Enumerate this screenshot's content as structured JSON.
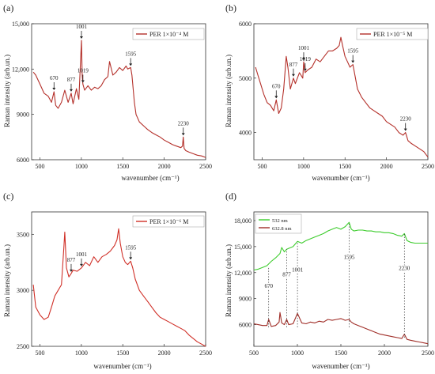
{
  "panels": [
    {
      "letter": "(a)",
      "ylabel": "Raman intensity (arb.un.)",
      "xlabel": "wavenumber (cm⁻¹)",
      "legend": [
        {
          "name": "PER 1×10⁻⁴ M",
          "color": "#b4302a"
        }
      ]
    },
    {
      "letter": "(b)",
      "ylabel": "Raman intensity (arb.un.)",
      "xlabel": "wavenumber (cm⁻¹)",
      "legend": [
        {
          "name": "PER 1×10⁻⁵ M",
          "color": "#b4302a"
        }
      ]
    },
    {
      "letter": "(c)",
      "ylabel": "Raman intensity (arb.un.)",
      "xlabel": "wavenumber (cm⁻¹)",
      "legend": [
        {
          "name": "PER 1×10⁻⁶ M",
          "color": "#d03028"
        }
      ]
    },
    {
      "letter": "(d)",
      "ylabel": "Raman intensity (arb.un.)",
      "xlabel": "wavenumber (cm⁻¹)",
      "legend": [
        {
          "name": "532 nm",
          "color": "#3ccc2c"
        },
        {
          "name": "632.8 nm",
          "color": "#a02e28"
        }
      ]
    }
  ],
  "chart_data": [
    {
      "type": "line",
      "xlim": [
        400,
        2500
      ],
      "ylim": [
        6000,
        15000
      ],
      "xticks": [
        500,
        1000,
        1500,
        2000,
        2500
      ],
      "yticks": [
        6000,
        9000,
        12000,
        15000
      ],
      "ytick_labels": [
        "6000",
        "9000",
        "12,000",
        "15,000"
      ],
      "grid": false,
      "legend_position": "top-right",
      "series": [
        {
          "name": "PER 1×10⁻⁴ M",
          "color": "#b4302a",
          "x": [
            420,
            450,
            500,
            550,
            600,
            640,
            670,
            690,
            720,
            760,
            800,
            840,
            877,
            900,
            940,
            970,
            1001,
            1010,
            1019,
            1040,
            1080,
            1120,
            1160,
            1200,
            1240,
            1280,
            1320,
            1340,
            1380,
            1420,
            1460,
            1500,
            1540,
            1560,
            1595,
            1610,
            1640,
            1660,
            1700,
            1760,
            1800,
            1850,
            1900,
            1950,
            2000,
            2050,
            2100,
            2150,
            2200,
            2220,
            2230,
            2240,
            2260,
            2300,
            2350,
            2400,
            2450,
            2500
          ],
          "y": [
            11800,
            11600,
            11000,
            10400,
            10200,
            9800,
            10500,
            9600,
            9400,
            9800,
            10600,
            9800,
            10400,
            9700,
            10700,
            10000,
            13900,
            11600,
            11000,
            10600,
            10900,
            10600,
            10800,
            10700,
            10900,
            11300,
            11500,
            12500,
            11600,
            11800,
            12100,
            11900,
            12200,
            12000,
            12100,
            11600,
            9800,
            9000,
            8500,
            8200,
            8000,
            7800,
            7650,
            7500,
            7300,
            7150,
            7000,
            6900,
            6800,
            6900,
            7500,
            6750,
            6600,
            6500,
            6400,
            6300,
            6250,
            6150
          ]
        }
      ],
      "annotations": [
        {
          "label": "670",
          "x": 670,
          "y": 10500
        },
        {
          "label": "877",
          "x": 877,
          "y": 10400
        },
        {
          "label": "1001",
          "x": 1001,
          "y": 13900
        },
        {
          "label": "1019",
          "x": 1019,
          "y": 11000
        },
        {
          "label": "1595",
          "x": 1595,
          "y": 12100
        },
        {
          "label": "2230",
          "x": 2230,
          "y": 7500
        }
      ]
    },
    {
      "type": "line",
      "xlim": [
        400,
        2500
      ],
      "ylim": [
        3500,
        6000
      ],
      "xticks": [
        500,
        1000,
        1500,
        2000,
        2500
      ],
      "yticks": [
        4000,
        5000,
        6000
      ],
      "ytick_labels": [
        "4000",
        "5000",
        "6000"
      ],
      "grid": false,
      "legend_position": "top-right",
      "series": [
        {
          "name": "PER 1×10⁻⁵ M",
          "color": "#b4302a",
          "x": [
            420,
            450,
            480,
            520,
            560,
            600,
            640,
            670,
            700,
            730,
            760,
            790,
            810,
            840,
            877,
            900,
            950,
            990,
            1001,
            1019,
            1050,
            1100,
            1150,
            1200,
            1250,
            1300,
            1350,
            1400,
            1430,
            1450,
            1470,
            1500,
            1530,
            1560,
            1595,
            1620,
            1650,
            1700,
            1750,
            1800,
            1850,
            1900,
            1950,
            2000,
            2050,
            2100,
            2150,
            2200,
            2230,
            2260,
            2300,
            2350,
            2400,
            2450,
            2500
          ],
          "y": [
            5200,
            5050,
            4900,
            4700,
            4550,
            4500,
            4400,
            4600,
            4350,
            4450,
            4800,
            5400,
            5200,
            4800,
            5000,
            4900,
            5100,
            5000,
            5300,
            5100,
            5150,
            5200,
            5350,
            5300,
            5400,
            5500,
            5500,
            5550,
            5600,
            5750,
            5600,
            5400,
            5300,
            5200,
            5250,
            5050,
            4800,
            4650,
            4550,
            4450,
            4400,
            4350,
            4300,
            4200,
            4150,
            4100,
            4000,
            3950,
            4000,
            3850,
            3800,
            3750,
            3700,
            3650,
            3550
          ]
        }
      ],
      "annotations": [
        {
          "label": "670",
          "x": 670,
          "y": 4600
        },
        {
          "label": "877",
          "x": 877,
          "y": 5000
        },
        {
          "label": "1001",
          "x": 1001,
          "y": 5300
        },
        {
          "label": "1019",
          "x": 1019,
          "y": 5100
        },
        {
          "label": "1595",
          "x": 1595,
          "y": 5250
        },
        {
          "label": "2230",
          "x": 2230,
          "y": 4000
        }
      ]
    },
    {
      "type": "line",
      "xlim": [
        400,
        2500
      ],
      "ylim": [
        2500,
        3700
      ],
      "xticks": [
        500,
        1000,
        1500,
        2000,
        2500
      ],
      "yticks": [
        2500,
        3000,
        3500
      ],
      "ytick_labels": [
        "2500",
        "3000",
        "3500"
      ],
      "grid": false,
      "legend_position": "top-right",
      "series": [
        {
          "name": "PER 1×10⁻⁶ M",
          "color": "#d03028",
          "x": [
            420,
            450,
            500,
            550,
            600,
            640,
            680,
            720,
            760,
            790,
            800,
            820,
            850,
            877,
            900,
            950,
            1001,
            1050,
            1100,
            1150,
            1200,
            1250,
            1300,
            1350,
            1400,
            1430,
            1450,
            1470,
            1500,
            1530,
            1560,
            1595,
            1620,
            1650,
            1700,
            1750,
            1800,
            1850,
            1900,
            1950,
            2000,
            2050,
            2100,
            2150,
            2200,
            2250,
            2300,
            2350,
            2400,
            2450,
            2500
          ],
          "y": [
            3050,
            2850,
            2780,
            2740,
            2760,
            2850,
            2950,
            3000,
            3050,
            3400,
            3520,
            3200,
            3120,
            3150,
            3180,
            3170,
            3200,
            3250,
            3220,
            3300,
            3250,
            3300,
            3320,
            3350,
            3400,
            3450,
            3550,
            3420,
            3300,
            3250,
            3230,
            3260,
            3200,
            3100,
            3000,
            2950,
            2900,
            2850,
            2800,
            2760,
            2740,
            2720,
            2700,
            2680,
            2660,
            2640,
            2600,
            2570,
            2540,
            2520,
            2500
          ]
        }
      ],
      "annotations": [
        {
          "label": "877",
          "x": 877,
          "y": 3150
        },
        {
          "label": "1001",
          "x": 1001,
          "y": 3200
        },
        {
          "label": "1595",
          "x": 1595,
          "y": 3260
        }
      ]
    },
    {
      "type": "line",
      "xlim": [
        500,
        2500
      ],
      "ylim": [
        3500,
        19000
      ],
      "xticks": [
        500,
        1000,
        1500,
        2000,
        2500
      ],
      "yticks": [
        6000,
        9000,
        12000,
        15000,
        18000
      ],
      "ytick_labels": [
        "6000",
        "9000",
        "12,000",
        "15,000",
        "18,000"
      ],
      "grid": false,
      "legend_position": "top-left",
      "series": [
        {
          "name": "532 nm",
          "color": "#3ccc2c",
          "x": [
            500,
            550,
            600,
            650,
            700,
            750,
            800,
            820,
            850,
            877,
            900,
            950,
            1001,
            1050,
            1100,
            1150,
            1200,
            1250,
            1300,
            1350,
            1400,
            1450,
            1500,
            1550,
            1595,
            1620,
            1650,
            1700,
            1750,
            1800,
            1850,
            1900,
            1950,
            2000,
            2050,
            2100,
            2150,
            2200,
            2230,
            2260,
            2300,
            2350,
            2400,
            2450,
            2500
          ],
          "y": [
            12300,
            12400,
            12600,
            12800,
            13300,
            13700,
            14200,
            14900,
            14400,
            14700,
            14800,
            15000,
            15600,
            15400,
            15700,
            15900,
            16100,
            16300,
            16500,
            16800,
            17000,
            17200,
            17000,
            17300,
            17800,
            17000,
            16800,
            16900,
            16900,
            16800,
            16800,
            16700,
            16700,
            16600,
            16600,
            16500,
            16300,
            16200,
            16500,
            15700,
            15500,
            15400,
            15400,
            15400,
            15400
          ]
        },
        {
          "name": "632.8 nm",
          "color": "#a02e28",
          "x": [
            500,
            550,
            600,
            650,
            670,
            700,
            750,
            790,
            800,
            820,
            850,
            877,
            900,
            950,
            1001,
            1050,
            1100,
            1150,
            1200,
            1250,
            1300,
            1350,
            1400,
            1450,
            1500,
            1550,
            1595,
            1620,
            1650,
            1700,
            1750,
            1800,
            1850,
            1900,
            1950,
            2000,
            2050,
            2100,
            2150,
            2200,
            2230,
            2260,
            2300,
            2350,
            2400,
            2450,
            2500
          ],
          "y": [
            6100,
            6000,
            5900,
            5900,
            6600,
            5800,
            5900,
            6300,
            7400,
            6200,
            6000,
            6600,
            6000,
            6100,
            7300,
            6200,
            6100,
            6300,
            6200,
            6400,
            6300,
            6600,
            6500,
            6600,
            6700,
            6500,
            6600,
            6300,
            6100,
            5900,
            5700,
            5500,
            5300,
            5100,
            4900,
            4800,
            4700,
            4600,
            4500,
            4400,
            4900,
            4300,
            4200,
            4100,
            4000,
            3900,
            3800
          ]
        }
      ],
      "annotations": [
        {
          "label": "670",
          "x": 670,
          "y1": 5700,
          "y2": 12700
        },
        {
          "label": "877",
          "x": 877,
          "y1": 5700,
          "y2": 14700
        },
        {
          "label": "1001",
          "x": 1001,
          "y1": 5700,
          "y2": 15600
        },
        {
          "label": "1595",
          "x": 1595,
          "y1": 5700,
          "y2": 17800
        },
        {
          "label": "2230",
          "x": 2230,
          "y1": 4500,
          "y2": 16500
        }
      ]
    }
  ]
}
